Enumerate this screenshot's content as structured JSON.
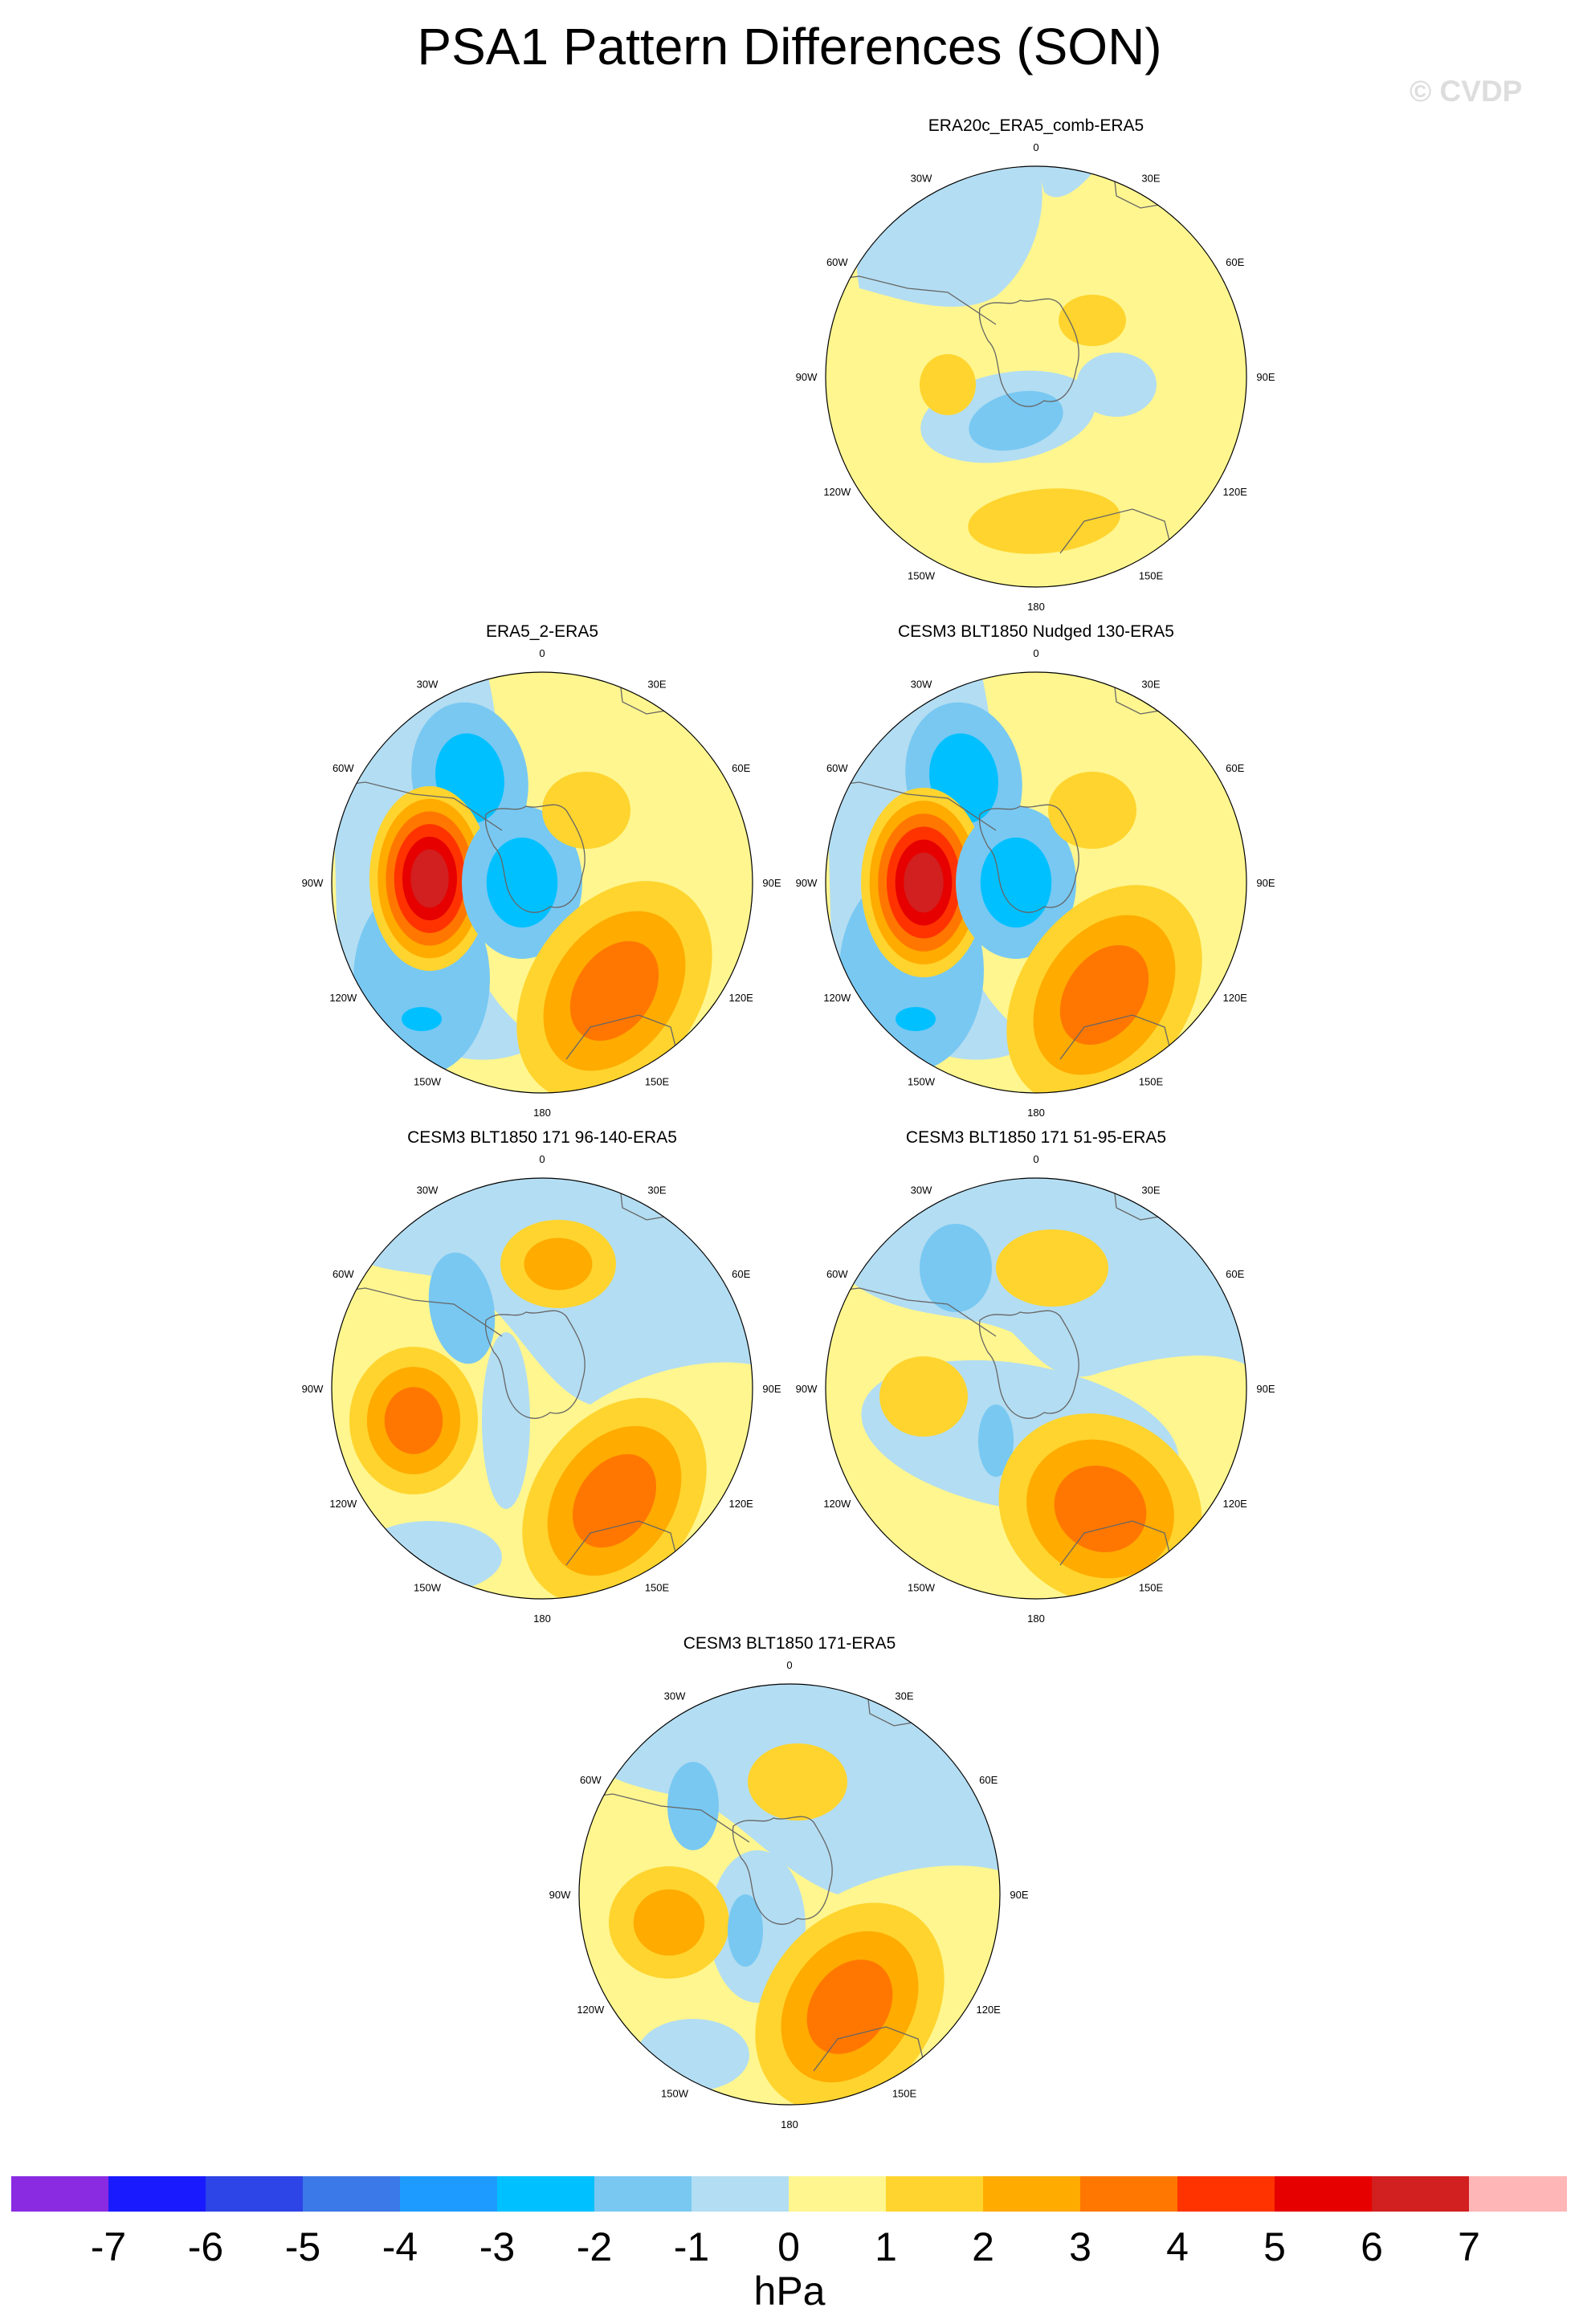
{
  "title": "PSA1 Pattern Differences (SON)",
  "watermark": "© CVDP",
  "panels": [
    {
      "title": "ERA20c_ERA5_comb-ERA5"
    },
    {
      "title": "ERA5_2-ERA5"
    },
    {
      "title": "CESM3 BLT1850 Nudged 130-ERA5"
    },
    {
      "title": "CESM3 BLT1850 171 96-140-ERA5"
    },
    {
      "title": "CESM3 BLT1850 171 51-95-ERA5"
    },
    {
      "title": "CESM3 BLT1850 171-ERA5"
    }
  ],
  "lon_labels": [
    "0",
    "30E",
    "60E",
    "90E",
    "120E",
    "150E",
    "180",
    "150W",
    "120W",
    "90W",
    "60W",
    "30W"
  ],
  "colorbar": {
    "colors": [
      "#8a2be2",
      "#1a1aff",
      "#2d44e6",
      "#3b78e8",
      "#1e9bff",
      "#00c0ff",
      "#78c8f2",
      "#b3ddf2",
      "#fff68f",
      "#ffd42e",
      "#ffab00",
      "#ff7700",
      "#ff3300",
      "#e60000",
      "#d21f1f",
      "#ffb6b6"
    ],
    "ticks": [
      "-7",
      "-6",
      "-5",
      "-4",
      "-3",
      "-2",
      "-1",
      "0",
      "1",
      "2",
      "3",
      "4",
      "5",
      "6",
      "7"
    ],
    "units": "hPa"
  }
}
